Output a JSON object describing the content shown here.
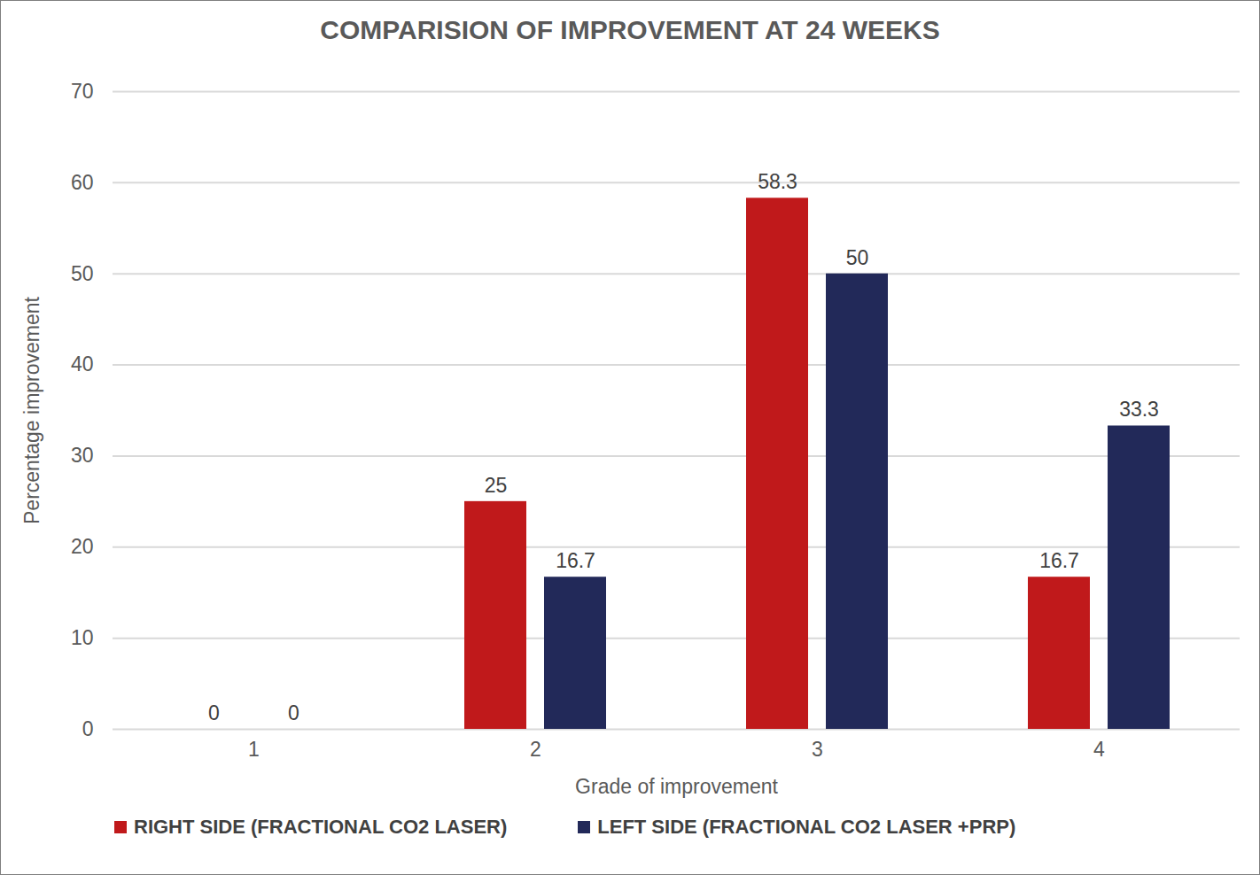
{
  "chart_data": {
    "type": "bar",
    "title": "COMPARISION OF IMPROVEMENT AT 24 WEEKS",
    "x_label": "Grade of improvement",
    "y_label": "Percentage improvement",
    "categories": [
      "1",
      "2",
      "3",
      "4"
    ],
    "series": [
      {
        "name": "RIGHT SIDE (FRACTIONAL CO2 LASER)",
        "color": "#c0191b",
        "values": [
          0,
          25,
          58.3,
          16.7
        ]
      },
      {
        "name": "LEFT SIDE (FRACTIONAL CO2 LASER +PRP)",
        "color": "#222959",
        "values": [
          0,
          16.7,
          50,
          33.3
        ]
      }
    ],
    "ylim": [
      0,
      70
    ],
    "yticks": [
      0,
      10,
      20,
      30,
      40,
      50,
      60,
      70
    ],
    "grid": true,
    "data_labels": true,
    "legend": "bottom"
  }
}
